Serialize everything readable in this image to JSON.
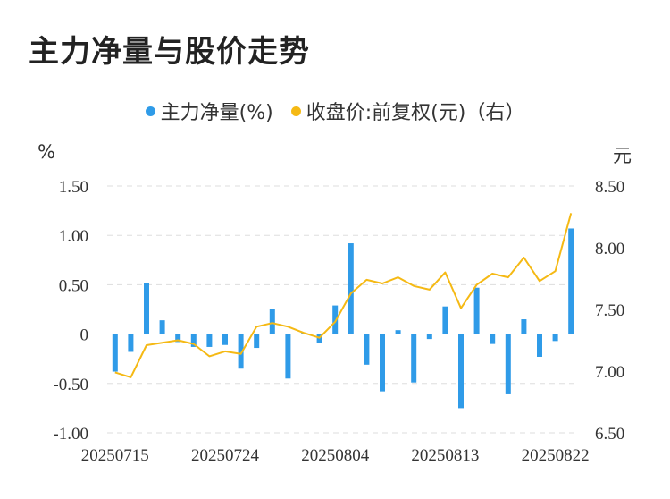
{
  "title": "主力净量与股价走势",
  "legend": {
    "series1": "主力净量(%)",
    "series2": "收盘价:前复权(元)（右）"
  },
  "units": {
    "left": "%",
    "right": "元"
  },
  "colors": {
    "bar": "#2f9be8",
    "line": "#f5b914",
    "grid": "#dddddd"
  },
  "chart_data": {
    "type": "bar+line",
    "title": "主力净量与股价走势",
    "x_tick_labels": [
      "20250715",
      "20250724",
      "20250804",
      "20250813",
      "20250822"
    ],
    "x_tick_indices": [
      0,
      7,
      14,
      21,
      28
    ],
    "left_axis": {
      "label": "%",
      "ylim": [
        -1.0,
        1.5
      ],
      "ticks": [
        1.5,
        1.0,
        0.5,
        0,
        -0.5,
        -1.0
      ],
      "tick_labels": [
        "1.50",
        "1.00",
        "0.50",
        "0",
        "-0.50",
        "-1.00"
      ]
    },
    "right_axis": {
      "label": "元",
      "ylim": [
        6.5,
        8.5
      ],
      "ticks": [
        8.5,
        8.0,
        7.5,
        7.0,
        6.5
      ],
      "tick_labels": [
        "8.50",
        "8.00",
        "7.50",
        "7.00",
        "6.50"
      ]
    },
    "series": [
      {
        "name": "主力净量(%)",
        "type": "bar",
        "axis": "left",
        "values": [
          -0.38,
          -0.18,
          0.52,
          0.14,
          -0.08,
          -0.13,
          -0.13,
          -0.11,
          -0.35,
          -0.14,
          0.25,
          -0.45,
          0.01,
          -0.09,
          0.29,
          0.92,
          -0.31,
          -0.58,
          0.04,
          -0.49,
          -0.05,
          0.28,
          -0.75,
          0.47,
          -0.1,
          -0.61,
          0.15,
          -0.23,
          -0.07,
          1.07
        ]
      },
      {
        "name": "收盘价:前复权(元)（右）",
        "type": "line",
        "axis": "right",
        "values": [
          6.99,
          6.95,
          7.21,
          7.23,
          7.25,
          7.22,
          7.12,
          7.16,
          7.14,
          7.36,
          7.39,
          7.36,
          7.31,
          7.27,
          7.4,
          7.63,
          7.74,
          7.71,
          7.76,
          7.69,
          7.66,
          7.8,
          7.51,
          7.7,
          7.79,
          7.76,
          7.92,
          7.73,
          7.81,
          8.28
        ]
      }
    ],
    "grid": true,
    "legend_position": "top-center"
  }
}
